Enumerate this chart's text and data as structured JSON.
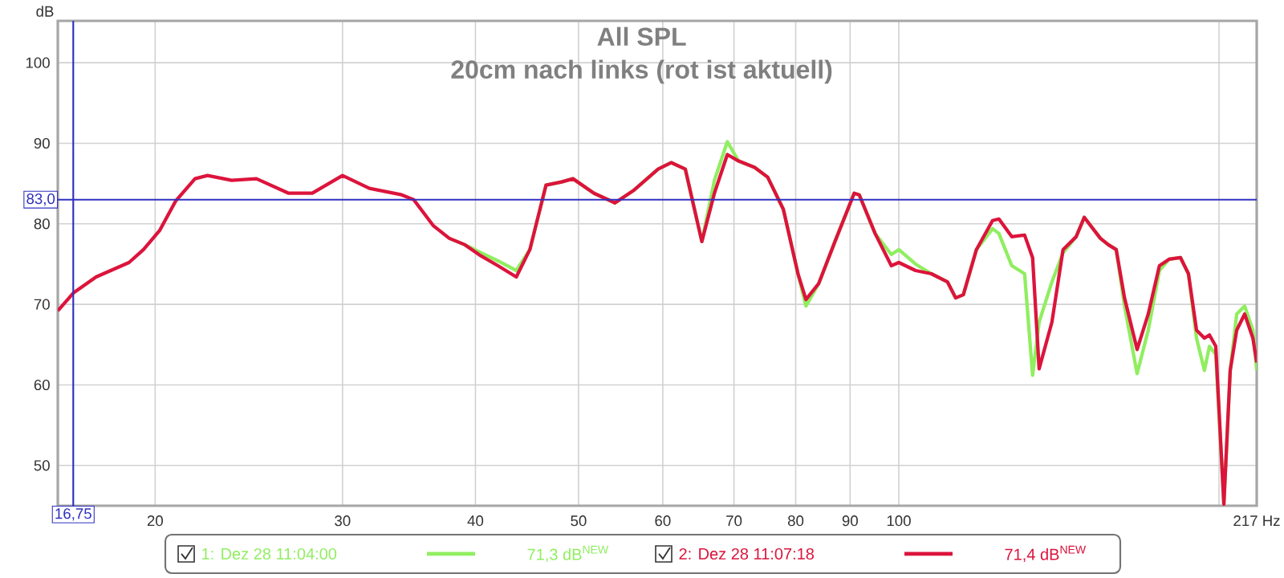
{
  "chart_data": {
    "type": "line",
    "title": "All SPL",
    "subtitle": "20cm nach links (rot ist aktuell)",
    "ylabel": "dB",
    "x": [
      16.2,
      16.75,
      17.6,
      18.9,
      19.5,
      20.2,
      20.9,
      21.8,
      22.4,
      23.6,
      24.9,
      26.7,
      28.1,
      30,
      31.8,
      34.1,
      35,
      36.5,
      37.8,
      39.1,
      40.5,
      42,
      43.7,
      45,
      46.6,
      48.2,
      49.4,
      51.7,
      54.1,
      56.4,
      59.4,
      61.1,
      63,
      65.3,
      67.1,
      69,
      70.7,
      73.2,
      75.3,
      77.9,
      80.4,
      81.8,
      84.1,
      87.1,
      90.8,
      91.8,
      95,
      98.4,
      100,
      103.7,
      107.3,
      111.1,
      113.1,
      115,
      118.3,
      122.5,
      124.2,
      127.7,
      131.3,
      133.6,
      135.5,
      139.3,
      142.7,
      146.8,
      149.4,
      154.7,
      157.4,
      160.1,
      163,
      167.5,
      171.6,
      175.8,
      179.5,
      184,
      187.2,
      190.5,
      193.8,
      195.9,
      198.6,
      202.1,
      204.9,
      207.8,
      211.4,
      215.2,
      217
    ],
    "series": [
      {
        "name": "1: Dez 28 11:04:00",
        "color": "#90ee60",
        "values": [
          null,
          null,
          null,
          null,
          null,
          null,
          null,
          null,
          null,
          null,
          null,
          null,
          null,
          null,
          null,
          null,
          null,
          null,
          78.2,
          77.4,
          76.4,
          75.4,
          74.2,
          76.8,
          84.8,
          85.2,
          85.6,
          83.8,
          82.6,
          84.2,
          86.8,
          87.6,
          86.8,
          77.8,
          85.4,
          90.2,
          87.8,
          87,
          85.8,
          81.8,
          73.8,
          69.8,
          72.6,
          77.8,
          83.8,
          83.6,
          78.8,
          76.2,
          76.8,
          75,
          73.8,
          72.8,
          70.8,
          71.2,
          76.8,
          79.4,
          78.8,
          74.8,
          73.8,
          61.2,
          67.8,
          72.8,
          76.4,
          78.4,
          80.8,
          78.2,
          77.4,
          76.8,
          69.8,
          61.4,
          66.8,
          74.2,
          75.6,
          75.8,
          73.8,
          65.8,
          61.8,
          64.8,
          63.8,
          45.2,
          61.8,
          68.8,
          69.8,
          66.8,
          61.8
        ]
      },
      {
        "name": "2: Dez 28 11:07:18",
        "color": "#dc143c",
        "values": [
          69.2,
          71.4,
          73.4,
          75.2,
          76.8,
          79.2,
          82.8,
          85.6,
          86,
          85.4,
          85.6,
          83.8,
          83.8,
          86,
          84.4,
          83.6,
          83,
          79.8,
          78.2,
          77.4,
          76,
          74.8,
          73.4,
          76.8,
          84.8,
          85.2,
          85.6,
          83.8,
          82.6,
          84.2,
          86.8,
          87.6,
          86.8,
          77.8,
          83.8,
          88.6,
          87.8,
          87,
          85.8,
          81.8,
          73.8,
          70.6,
          72.6,
          77.8,
          83.8,
          83.6,
          78.8,
          74.8,
          75.2,
          74.2,
          73.8,
          72.8,
          70.8,
          71.2,
          76.8,
          80.4,
          80.6,
          78.4,
          78.6,
          75.8,
          62,
          67.8,
          76.8,
          78.4,
          80.8,
          78.2,
          77.4,
          76.8,
          70.8,
          64.4,
          68.8,
          74.8,
          75.6,
          75.8,
          73.8,
          66.8,
          65.8,
          66.2,
          64.8,
          45.2,
          61.8,
          66.8,
          68.8,
          65.8,
          62.8
        ]
      }
    ],
    "annotations": [
      "71,3 dB$^{NEW}$",
      "71,4 dB$^{NEW}$"
    ],
    "log": "x",
    "xlim": [
      16.2,
      217
    ],
    "ylim": [
      45,
      105.2
    ],
    "xticks": [
      20,
      30,
      40,
      50,
      60,
      70,
      80,
      90,
      100,
      {
        "value": 200,
        "label": null
      },
      {
        "value": 217,
        "label": "217 Hz"
      }
    ],
    "yticks": [
      50,
      60,
      70,
      80,
      90,
      100
    ],
    "ref_lines": [
      {
        "axis": "y",
        "value": 83,
        "label": "83,0",
        "color": "#3030c0"
      },
      {
        "axis": "x",
        "value": 16.75,
        "label": "16,75",
        "color": "#3030c0"
      }
    ],
    "grid": true,
    "legend": "bottom",
    "marker": "none",
    "line_style": "solid"
  }
}
